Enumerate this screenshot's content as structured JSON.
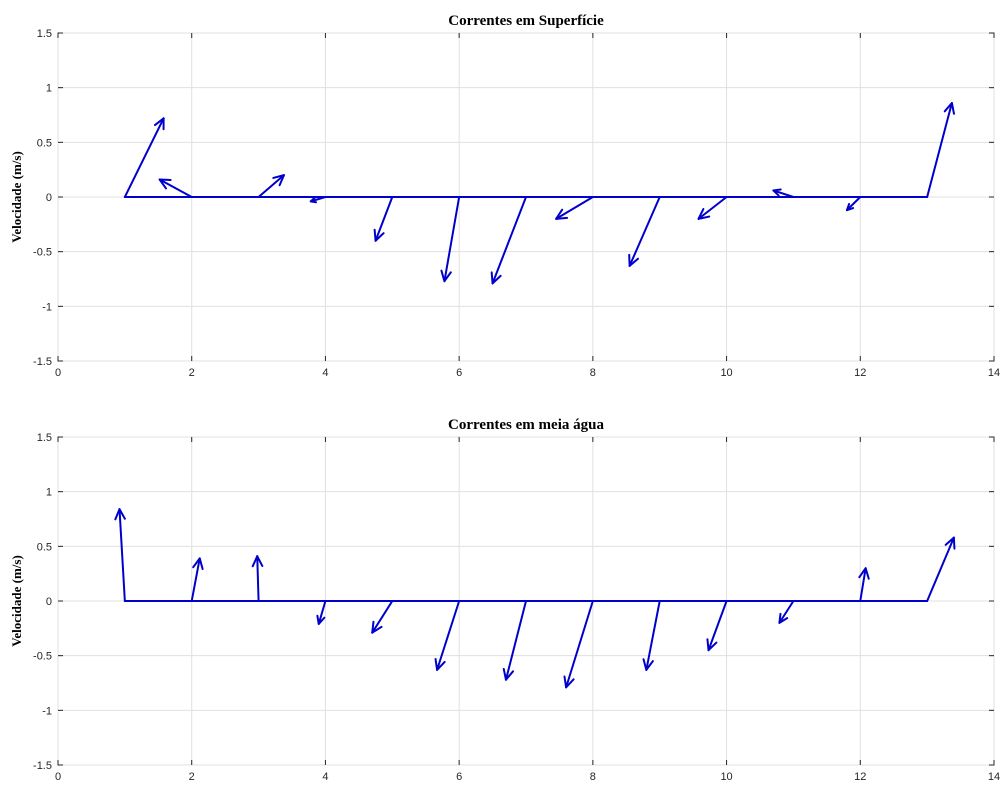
{
  "chart_data": [
    {
      "type": "quiver",
      "title": "Correntes em Superfície",
      "ylabel": "Velocidade (m/s)",
      "xlim": [
        0,
        14
      ],
      "ylim": [
        -1.5,
        1.5
      ],
      "xticks": [
        "0",
        "2",
        "4",
        "6",
        "8",
        "10",
        "12",
        "14"
      ],
      "yticks": [
        "1.5",
        "1",
        "0.5",
        "0",
        "-0.5",
        "-1",
        "-1.5"
      ],
      "grid": true,
      "baseline": {
        "x": [
          1,
          13
        ],
        "y": 0
      },
      "vectors": [
        {
          "x": 1,
          "y": 0,
          "u": 0.58,
          "v": 0.72
        },
        {
          "x": 2,
          "y": 0,
          "u": -0.48,
          "v": 0.16
        },
        {
          "x": 3,
          "y": 0,
          "u": 0.38,
          "v": 0.2
        },
        {
          "x": 4,
          "y": 0,
          "u": -0.22,
          "v": -0.04
        },
        {
          "x": 5,
          "y": 0,
          "u": -0.25,
          "v": -0.4
        },
        {
          "x": 6,
          "y": 0,
          "u": -0.22,
          "v": -0.77
        },
        {
          "x": 7,
          "y": 0,
          "u": -0.5,
          "v": -0.79
        },
        {
          "x": 8,
          "y": 0,
          "u": -0.55,
          "v": -0.2
        },
        {
          "x": 9,
          "y": 0,
          "u": -0.45,
          "v": -0.63
        },
        {
          "x": 10,
          "y": 0,
          "u": -0.42,
          "v": -0.2
        },
        {
          "x": 11,
          "y": 0,
          "u": -0.3,
          "v": 0.06
        },
        {
          "x": 12,
          "y": 0,
          "u": -0.2,
          "v": -0.12
        },
        {
          "x": 13,
          "y": 0,
          "u": 0.37,
          "v": 0.86
        }
      ]
    },
    {
      "type": "quiver",
      "title": "Correntes em meia água",
      "ylabel": "Velocidade (m/s)",
      "xlim": [
        0,
        14
      ],
      "ylim": [
        -1.5,
        1.5
      ],
      "xticks": [
        "0",
        "2",
        "4",
        "6",
        "8",
        "10",
        "12",
        "14"
      ],
      "yticks": [
        "1.5",
        "1",
        "0.5",
        "0",
        "-0.5",
        "-1",
        "-1.5"
      ],
      "grid": true,
      "baseline": {
        "x": [
          1,
          13
        ],
        "y": 0
      },
      "vectors": [
        {
          "x": 1,
          "y": 0,
          "u": -0.08,
          "v": 0.84
        },
        {
          "x": 2,
          "y": 0,
          "u": 0.12,
          "v": 0.39
        },
        {
          "x": 3,
          "y": 0,
          "u": -0.02,
          "v": 0.41
        },
        {
          "x": 4,
          "y": 0,
          "u": -0.1,
          "v": -0.21
        },
        {
          "x": 5,
          "y": 0,
          "u": -0.3,
          "v": -0.29
        },
        {
          "x": 6,
          "y": 0,
          "u": -0.33,
          "v": -0.63
        },
        {
          "x": 7,
          "y": 0,
          "u": -0.3,
          "v": -0.72
        },
        {
          "x": 8,
          "y": 0,
          "u": -0.4,
          "v": -0.79
        },
        {
          "x": 9,
          "y": 0,
          "u": -0.2,
          "v": -0.63
        },
        {
          "x": 10,
          "y": 0,
          "u": -0.27,
          "v": -0.45
        },
        {
          "x": 11,
          "y": 0,
          "u": -0.21,
          "v": -0.2
        },
        {
          "x": 12,
          "y": 0,
          "u": 0.08,
          "v": 0.3
        },
        {
          "x": 13,
          "y": 0,
          "u": 0.4,
          "v": 0.58
        }
      ]
    }
  ]
}
